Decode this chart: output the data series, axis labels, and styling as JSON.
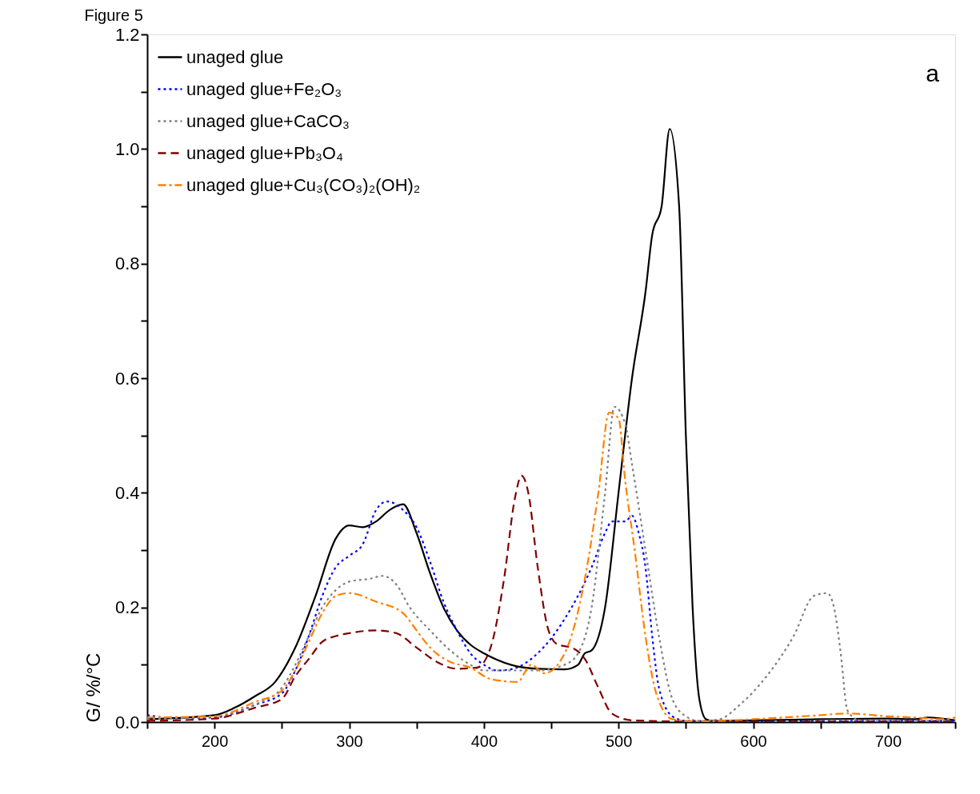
{
  "chart_data": {
    "type": "line",
    "ylabel": "G/ %/°C",
    "annotations": [
      "Figure 5",
      "a"
    ],
    "xlim": [
      150,
      750
    ],
    "xticks": [
      {
        "value": 150,
        "label": null
      },
      200,
      {
        "value": 250,
        "label": null
      },
      300,
      {
        "value": 350,
        "label": null
      },
      400,
      {
        "value": 450,
        "label": null
      },
      500,
      {
        "value": 550,
        "label": null
      },
      600,
      {
        "value": 650,
        "label": null
      },
      700,
      {
        "value": 750,
        "label": null
      }
    ],
    "ylim": [
      0,
      1.2
    ],
    "yticks": [
      {
        "value": 0,
        "label": "0.0"
      },
      {
        "value": 0.1,
        "label": null
      },
      0.2,
      {
        "value": 0.3,
        "label": null
      },
      0.4,
      {
        "value": 0.5,
        "label": null
      },
      0.6,
      {
        "value": 0.7,
        "label": null
      },
      0.8,
      {
        "value": 0.9,
        "label": null
      },
      {
        "value": 1,
        "label": "1.0"
      },
      {
        "value": 1.1,
        "label": null
      },
      1.2
    ],
    "grid": false,
    "legend": "top left",
    "series": [
      {
        "name": "unaged glue",
        "color": "#000000",
        "line_style": "solid",
        "x": [
          150,
          200,
          215,
          230,
          245,
          260,
          275,
          290,
          300,
          310,
          320,
          330,
          340,
          350,
          360,
          370,
          380,
          390,
          400,
          420,
          440,
          460,
          470,
          475,
          480,
          490,
          500,
          510,
          520,
          525,
          532,
          538,
          545,
          550,
          555,
          560,
          565,
          570,
          600,
          650,
          700,
          720,
          730,
          750
        ],
        "values": [
          0.005,
          0.012,
          0.025,
          0.045,
          0.07,
          0.13,
          0.22,
          0.32,
          0.343,
          0.34,
          0.35,
          0.37,
          0.38,
          0.33,
          0.26,
          0.2,
          0.16,
          0.135,
          0.12,
          0.1,
          0.093,
          0.092,
          0.1,
          0.12,
          0.125,
          0.2,
          0.4,
          0.6,
          0.75,
          0.85,
          0.9,
          1.035,
          0.9,
          0.5,
          0.2,
          0.04,
          0.005,
          0.002,
          0.003,
          0.005,
          0.006,
          0.005,
          0.008,
          0.003
        ]
      },
      {
        "name": "unaged glue+Fe₂O₃",
        "color": "#0000ff",
        "line_style": "dotted",
        "x": [
          150,
          170,
          200,
          230,
          250,
          260,
          270,
          280,
          290,
          300,
          310,
          320,
          328,
          340,
          350,
          360,
          370,
          380,
          390,
          400,
          410,
          420,
          440,
          460,
          480,
          490,
          495,
          505,
          510,
          515,
          520,
          525,
          530,
          540,
          550,
          600,
          700,
          750
        ],
        "values": [
          0.012,
          0.007,
          0.008,
          0.03,
          0.05,
          0.09,
          0.15,
          0.22,
          0.27,
          0.29,
          0.31,
          0.37,
          0.385,
          0.37,
          0.34,
          0.28,
          0.21,
          0.16,
          0.12,
          0.1,
          0.09,
          0.092,
          0.12,
          0.18,
          0.27,
          0.33,
          0.35,
          0.35,
          0.36,
          0.33,
          0.27,
          0.15,
          0.06,
          0.01,
          0.002,
          0.001,
          0.002,
          0.002
        ]
      },
      {
        "name": "unaged glue+CaCO₃",
        "color": "#808080",
        "line_style": "dotted",
        "x": [
          150,
          200,
          230,
          250,
          260,
          270,
          280,
          290,
          300,
          315,
          325,
          335,
          345,
          360,
          375,
          390,
          400,
          420,
          440,
          460,
          470,
          480,
          490,
          497,
          505,
          510,
          520,
          530,
          540,
          550,
          560,
          575,
          590,
          610,
          630,
          645,
          655,
          660,
          665,
          670,
          680,
          750
        ],
        "values": [
          0.005,
          0.01,
          0.03,
          0.06,
          0.1,
          0.15,
          0.2,
          0.23,
          0.245,
          0.25,
          0.255,
          0.24,
          0.2,
          0.16,
          0.125,
          0.1,
          0.09,
          0.09,
          0.09,
          0.1,
          0.12,
          0.2,
          0.4,
          0.55,
          0.52,
          0.45,
          0.3,
          0.15,
          0.04,
          0.01,
          0.002,
          0.005,
          0.03,
          0.08,
          0.15,
          0.22,
          0.225,
          0.2,
          0.12,
          0.02,
          0.002,
          0.002
        ]
      },
      {
        "name": "unaged glue+Pb₃O₄",
        "color": "#800000",
        "line_style": "dashed",
        "x": [
          150,
          200,
          230,
          250,
          260,
          270,
          280,
          290,
          300,
          320,
          335,
          350,
          365,
          380,
          395,
          405,
          415,
          423,
          428,
          433,
          440,
          448,
          455,
          465,
          475,
          485,
          495,
          510,
          550,
          750
        ],
        "values": [
          0.002,
          0.006,
          0.025,
          0.04,
          0.08,
          0.11,
          0.14,
          0.15,
          0.155,
          0.16,
          0.155,
          0.13,
          0.105,
          0.093,
          0.095,
          0.13,
          0.25,
          0.39,
          0.43,
          0.4,
          0.27,
          0.16,
          0.135,
          0.13,
          0.11,
          0.06,
          0.015,
          0.003,
          0.001,
          0.001
        ]
      },
      {
        "name": "unaged glue+Cu₃(CO₃)₂(OH)₂",
        "color": "#ff8000",
        "line_style": "dashdot",
        "x": [
          150,
          200,
          230,
          250,
          260,
          270,
          280,
          290,
          300,
          320,
          340,
          350,
          360,
          375,
          390,
          405,
          425,
          435,
          445,
          460,
          475,
          485,
          493,
          500,
          505,
          512,
          520,
          528,
          540,
          560,
          600,
          650,
          670,
          700,
          720,
          740,
          750
        ],
        "values": [
          0.008,
          0.01,
          0.035,
          0.055,
          0.09,
          0.14,
          0.19,
          0.22,
          0.225,
          0.21,
          0.19,
          0.16,
          0.13,
          0.105,
          0.095,
          0.075,
          0.07,
          0.1,
          0.085,
          0.12,
          0.25,
          0.4,
          0.54,
          0.53,
          0.42,
          0.3,
          0.15,
          0.05,
          0.005,
          0.001,
          0.005,
          0.012,
          0.015,
          0.01,
          0.008,
          0.005,
          0.008
        ]
      }
    ]
  }
}
